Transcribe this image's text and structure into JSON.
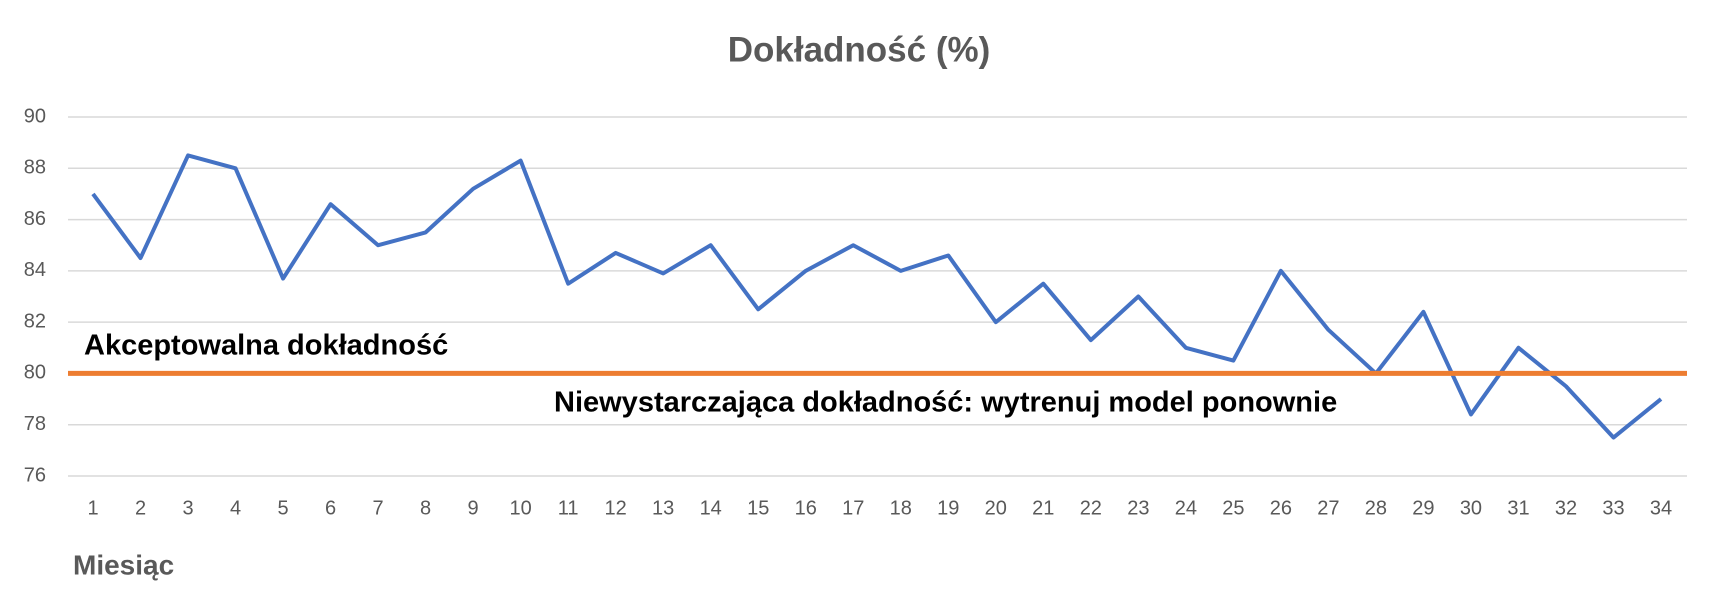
{
  "chart_data": {
    "type": "line",
    "title": "Dokładność (%)",
    "x_label": "Miesiąc",
    "categories": [
      "1",
      "2",
      "3",
      "4",
      "5",
      "6",
      "7",
      "8",
      "9",
      "10",
      "11",
      "12",
      "13",
      "14",
      "15",
      "16",
      "17",
      "18",
      "19",
      "20",
      "21",
      "22",
      "23",
      "24",
      "25",
      "26",
      "27",
      "28",
      "29",
      "30",
      "31",
      "32",
      "33",
      "34"
    ],
    "values": [
      87,
      84.5,
      88.5,
      88,
      83.7,
      86.6,
      85,
      85.5,
      87.2,
      88.3,
      83.5,
      84.7,
      83.9,
      85,
      82.5,
      84,
      85,
      84,
      84.6,
      82,
      83.5,
      81.3,
      83,
      81,
      80.5,
      84,
      81.7,
      80,
      82.4,
      78.4,
      81,
      79.5,
      77.5,
      79
    ],
    "color": "#4472C4",
    "ylim": [
      76,
      90
    ],
    "yticks": [
      76,
      78,
      80,
      82,
      84,
      86,
      88,
      90
    ],
    "grid": true,
    "threshold": 80,
    "threshold_color": "#ED7D31",
    "annotations": [
      "Akceptowalna dokładność",
      "Niewystarczająca dokładność: wytrenuj model ponownie"
    ]
  }
}
